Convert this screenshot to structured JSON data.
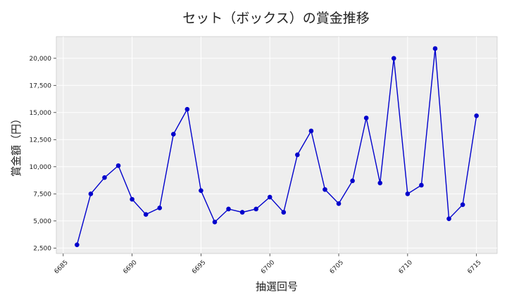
{
  "chart_data": {
    "type": "line",
    "title": "セット（ボックス）の賞金推移",
    "xlabel": "抽選回号",
    "ylabel": "賞金額（円）",
    "xlim": [
      6684.5,
      6716.5
    ],
    "ylim": [
      2000,
      22000
    ],
    "xticks": [
      6685,
      6690,
      6695,
      6700,
      6705,
      6710,
      6715
    ],
    "yticks": [
      2500,
      5000,
      7500,
      10000,
      12500,
      15000,
      17500,
      20000
    ],
    "grid": true,
    "series": [
      {
        "color": "#0000cc",
        "x": [
          6686,
          6687,
          6688,
          6689,
          6690,
          6691,
          6692,
          6693,
          6694,
          6695,
          6696,
          6697,
          6698,
          6699,
          6700,
          6701,
          6702,
          6703,
          6704,
          6705,
          6706,
          6707,
          6708,
          6709,
          6710,
          6711,
          6712,
          6713,
          6714,
          6715
        ],
        "y": [
          2800,
          7500,
          9000,
          10100,
          7000,
          5600,
          6200,
          13000,
          15300,
          7800,
          4900,
          6100,
          5800,
          6100,
          7200,
          5800,
          11100,
          13300,
          7900,
          6600,
          8700,
          14500,
          8500,
          20000,
          7500,
          8300,
          20900,
          5200,
          6500,
          14700
        ]
      }
    ]
  },
  "colors": {
    "plot_background": "#eeeeee",
    "grid": "#ffffff",
    "line": "#0000cc"
  }
}
